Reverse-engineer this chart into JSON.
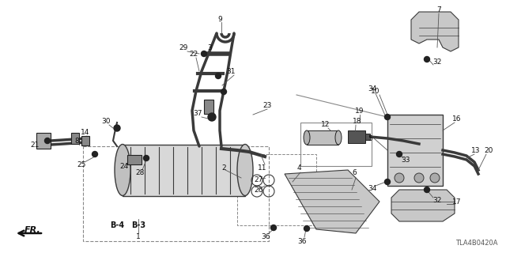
{
  "bg_color": "#ffffff",
  "part_id": "TLA4B0420A",
  "gray": "#3a3a3a",
  "lgray": "#b0b0b0",
  "dgray": "#222222",
  "figsize": [
    6.4,
    3.2
  ],
  "dpi": 100
}
